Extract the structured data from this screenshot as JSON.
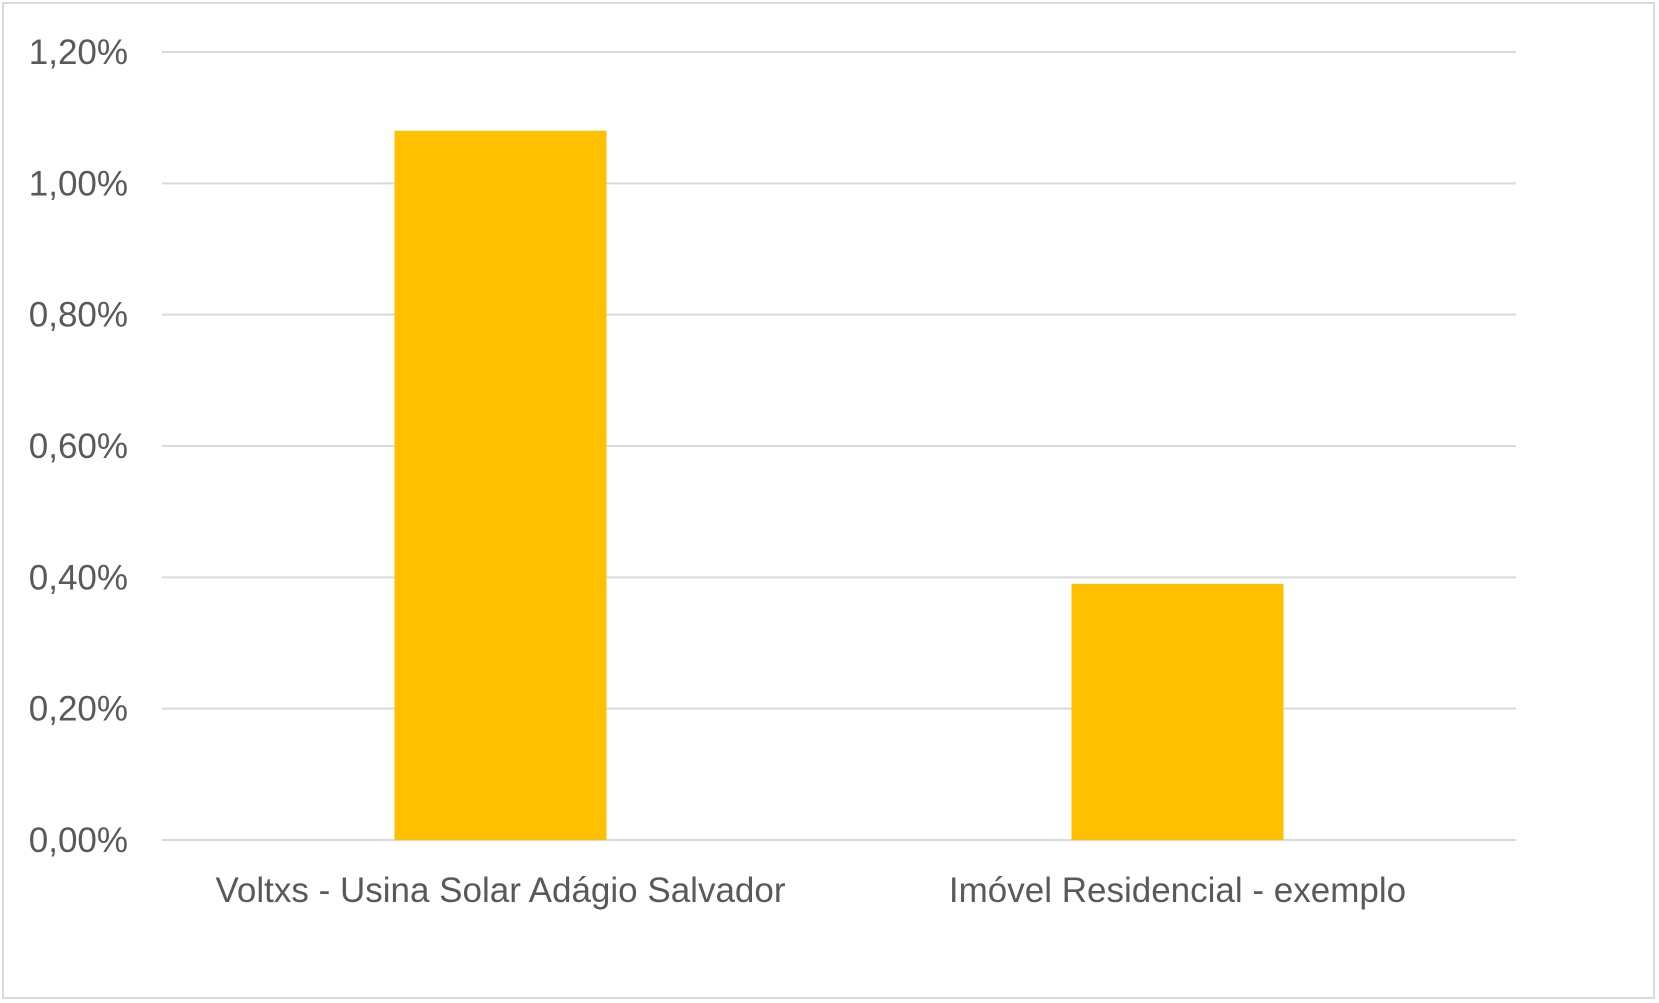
{
  "chart_data": {
    "type": "bar",
    "title": "",
    "xlabel": "",
    "ylabel": "",
    "categories": [
      "Voltxs - Usina Solar Adágio Salvador",
      "Imóvel Residencial - exemplo"
    ],
    "values": [
      1.08,
      0.39
    ],
    "value_unit": "%",
    "ylim": [
      0,
      1.2
    ],
    "yticks": [
      0,
      0.2,
      0.4,
      0.6,
      0.8,
      1.0,
      1.2
    ],
    "ytick_labels": [
      "0,00%",
      "0,20%",
      "0,40%",
      "0,60%",
      "0,80%",
      "1,00%",
      "1,20%"
    ],
    "grid": true,
    "legend": "none",
    "colors": {
      "bar": "#ffc000",
      "grid": "#d9d9d9",
      "text": "#595959",
      "frame": "#d9d9d9"
    }
  }
}
